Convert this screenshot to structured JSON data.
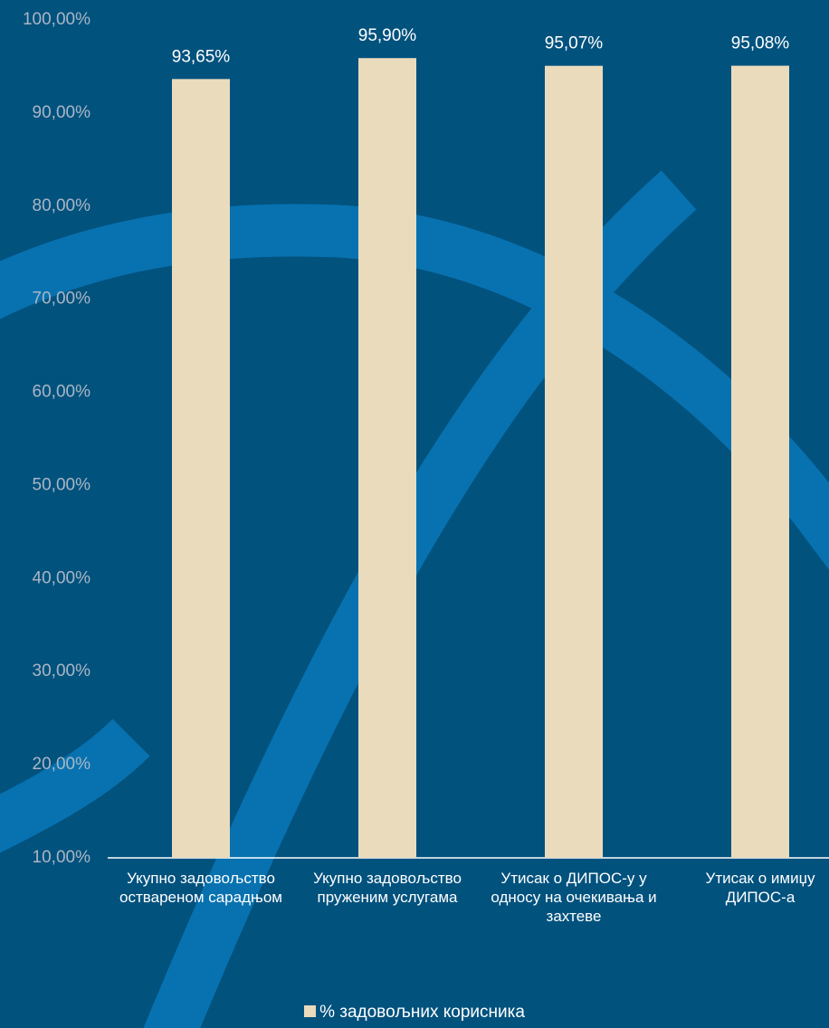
{
  "chart_data": {
    "type": "bar",
    "categories": [
      "Укупно задовољство оствареном сарадњом",
      "Укупно задовољство пруженим услугама",
      "Утисак о ДИПОС-у у односу на очекивања и захтеве",
      "Утисак о имиџу ДИПОС-а"
    ],
    "series": [
      {
        "name": "% задовољних корисника",
        "color": "#eadbbd",
        "values": [
          93.65,
          95.9,
          95.07,
          95.08
        ],
        "value_labels": [
          "93,65%",
          "95,90%",
          "95,07%",
          "95,08%"
        ]
      }
    ],
    "ylim": [
      10,
      100
    ],
    "yticks": [
      {
        "value": 10,
        "label": "10,00%"
      },
      {
        "value": 20,
        "label": "20,00%"
      },
      {
        "value": 30,
        "label": "30,00%"
      },
      {
        "value": 40,
        "label": "40,00%"
      },
      {
        "value": 50,
        "label": "50,00%"
      },
      {
        "value": 60,
        "label": "60,00%"
      },
      {
        "value": 70,
        "label": "70,00%"
      },
      {
        "value": 80,
        "label": "80,00%"
      },
      {
        "value": 90,
        "label": "90,00%"
      },
      {
        "value": 100,
        "label": "100,00%"
      }
    ],
    "legend": "bottom"
  }
}
